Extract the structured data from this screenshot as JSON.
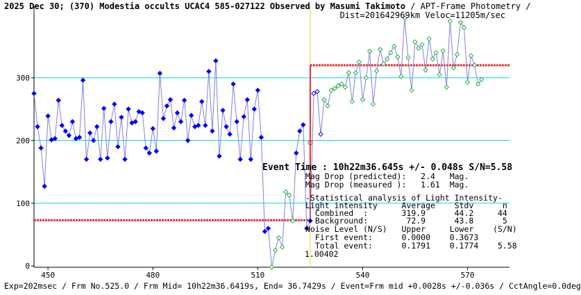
{
  "header": {
    "title_line1": "2025 Dec 30; (370) Modestia occults UCAC4 585-027122 Observed by Masumi Takimoto",
    "title_suffix": " / APT-Frame Photometry /",
    "title_line2": "Dist=201642969km Veloc=11205m/sec"
  },
  "annotations": {
    "event_time": "Event Time : 10h22m36.645s  +/- 0.048s  S/N=5.58",
    "mag_drop_predicted": "Mag Drop (predicted):   2.4   Mag.",
    "mag_drop_measured": "Mag Drop (measured ):   1.61  Mag.",
    "stat_title": "-Statistical analysis of Light Intensity-",
    "stat_header": "Light intensity     Average    Stdv      n",
    "stat_combined": "  Combined  :       319.9      44.2     44",
    "stat_background": "  Background:        72.9      43.8      5",
    "noise_header": "Noise Level (N/S)   Upper     Lower    (S/N)",
    "noise_first": "  First event:      0.0000    0.3673",
    "noise_total": "  Total event:      0.1791    0.1774    5.58",
    "extra_value": "1.00402"
  },
  "footer": {
    "text": "Exp=202msec / Frm No.525.0 / Frm Mid= 10h22m36.6419s,  End= 36.7429s / Event=Frm mid +0.0028s +/-0.036s / CctAngle=0.0deg"
  },
  "colors": {
    "line": "#8080e0",
    "pre_points": "#0000ff",
    "post_points": "#20b040",
    "level": "#e03030",
    "grid": "#00d8d8",
    "event_line": "#f0d020"
  },
  "chart_data": {
    "type": "line",
    "xlabel": "",
    "ylabel": "",
    "xlim": [
      446,
      582
    ],
    "ylim": [
      -2,
      415
    ],
    "xticks": [
      450,
      480,
      510,
      540,
      570
    ],
    "yticks": [
      0,
      100,
      200,
      300
    ],
    "grid_y": [
      100,
      200,
      300
    ],
    "event_frame": 525,
    "levels": [
      {
        "name": "Background",
        "value": 72.9,
        "x": [
          446,
          525
        ]
      },
      {
        "name": "Combined",
        "value": 319.9,
        "x": [
          525,
          582
        ]
      }
    ],
    "series": [
      {
        "group": "before",
        "x": [
          446,
          447,
          448,
          449,
          450,
          451,
          452,
          453,
          454,
          455,
          456,
          457,
          458,
          459,
          460,
          461,
          462,
          463,
          464,
          465,
          466,
          467,
          468,
          469,
          470,
          471,
          472,
          473,
          474,
          475,
          476,
          477,
          478,
          479,
          480,
          481,
          482,
          483,
          484,
          485,
          486,
          487,
          488,
          489,
          490,
          491,
          492,
          493,
          494,
          495,
          496,
          497,
          498,
          499,
          500,
          501,
          502,
          503,
          504,
          505,
          506,
          507,
          508,
          509,
          510,
          511,
          512,
          513,
          514,
          515,
          516,
          517,
          518,
          519,
          520,
          521,
          522,
          523,
          524,
          525
        ],
        "y": [
          275,
          222,
          188,
          127,
          239,
          201,
          203,
          264,
          224,
          215,
          208,
          230,
          203,
          205,
          296,
          170,
          212,
          200,
          222,
          170,
          251,
          172,
          230,
          258,
          190,
          237,
          170,
          250,
          228,
          230,
          246,
          244,
          188,
          180,
          219,
          183,
          307,
          235,
          255,
          265,
          220,
          244,
          230,
          264,
          200,
          240,
          222,
          224,
          262,
          224,
          310,
          215,
          327,
          175,
          248,
          222,
          210,
          290,
          230,
          170,
          238,
          265,
          170,
          250,
          280,
          205,
          55,
          60,
          -2,
          25,
          45,
          30,
          118,
          113,
          72,
          180,
          215,
          225,
          60,
          72
        ]
      },
      {
        "group": "after",
        "x": [
          526,
          527,
          528,
          529,
          530,
          531,
          532,
          533,
          534,
          535,
          536,
          537,
          538,
          539,
          540,
          541,
          542,
          543,
          544,
          545,
          546,
          547,
          548,
          549,
          550,
          551,
          552,
          553,
          554,
          555,
          556,
          557,
          558,
          559,
          560,
          561,
          562,
          563,
          564,
          565,
          566,
          567,
          568,
          569,
          570,
          571,
          572,
          573,
          574
        ],
        "y": [
          275,
          278,
          210,
          265,
          255,
          280,
          283,
          287,
          290,
          285,
          308,
          262,
          308,
          325,
          265,
          300,
          342,
          258,
          311,
          345,
          322,
          330,
          340,
          350,
          333,
          302,
          395,
          332,
          280,
          357,
          347,
          353,
          312,
          362,
          330,
          340,
          305,
          343,
          285,
          390,
          316,
          337,
          388,
          380,
          293,
          335,
          320,
          290,
          297
        ]
      }
    ]
  }
}
